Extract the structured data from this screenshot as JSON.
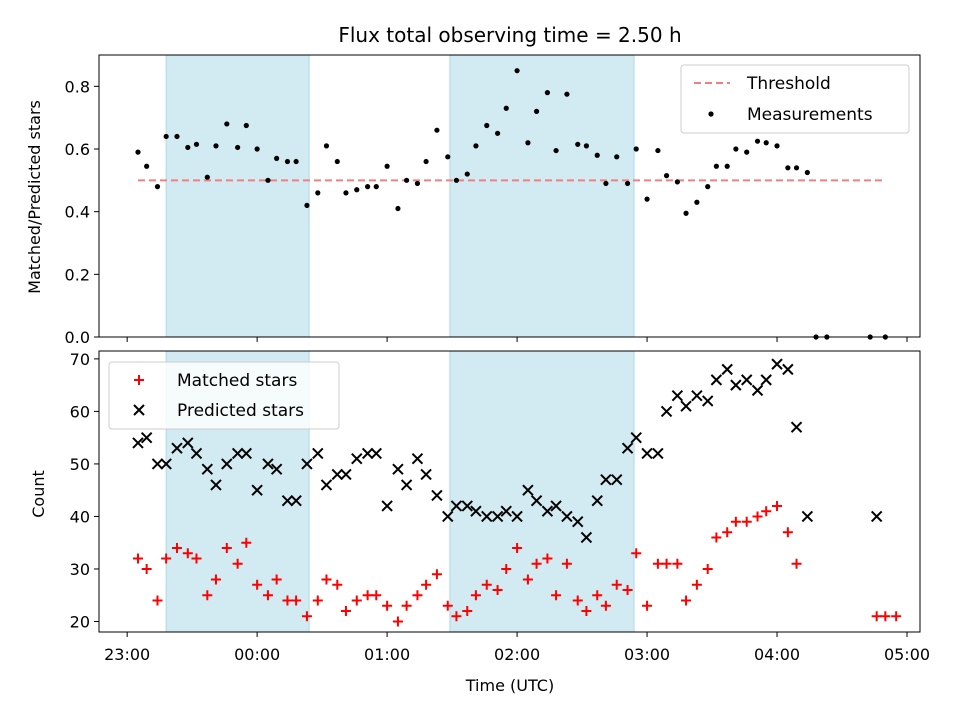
{
  "chart_data": {
    "title": "Flux total observing time = 2.50 h",
    "xlabel": "Time (UTC)",
    "x_ticks": [
      "23:00",
      "00:00",
      "01:00",
      "02:00",
      "03:00",
      "04:00",
      "05:00"
    ],
    "x_range": [
      "22:47",
      "05:06"
    ],
    "shaded_intervals": [
      [
        "23:18",
        "00:24"
      ],
      [
        "01:29",
        "02:54"
      ]
    ],
    "shade_color": "#add8e6",
    "time": [
      "23:05",
      "23:09",
      "23:14",
      "23:18",
      "23:23",
      "23:28",
      "23:32",
      "23:37",
      "23:41",
      "23:46",
      "23:51",
      "23:55",
      "00:00",
      "00:05",
      "00:09",
      "00:14",
      "00:18",
      "00:23",
      "00:28",
      "00:32",
      "00:37",
      "00:41",
      "00:46",
      "00:51",
      "00:55",
      "01:00",
      "01:05",
      "01:09",
      "01:14",
      "01:18",
      "01:23",
      "01:28",
      "01:32",
      "01:37",
      "01:41",
      "01:46",
      "01:51",
      "01:55",
      "02:00",
      "02:05",
      "02:09",
      "02:14",
      "02:18",
      "02:23",
      "02:28",
      "02:32",
      "02:37",
      "02:41",
      "02:46",
      "02:51",
      "02:55",
      "03:00",
      "03:05",
      "03:09",
      "03:14",
      "03:18",
      "03:23",
      "03:28",
      "03:32",
      "03:37",
      "03:41",
      "03:46",
      "03:51",
      "03:55",
      "04:00",
      "04:05",
      "04:09",
      "04:14",
      "04:18",
      "04:23",
      "04:28",
      "04:32",
      "04:37",
      "04:41",
      "04:46"
    ],
    "panels": [
      {
        "type": "scatter",
        "ylabel": "Matched/Predicted stars",
        "ylim": [
          0,
          0.9
        ],
        "y_ticks": [
          0.0,
          0.2,
          0.4,
          0.6,
          0.8
        ],
        "threshold": {
          "name": "Threshold",
          "value": 0.5,
          "x_start": "23:05",
          "x_end": "04:50",
          "color": "#f08080"
        },
        "series": [
          {
            "name": "Measurements",
            "color": "#000000",
            "marker": "dot",
            "values": [
              0.59,
              0.545,
              0.48,
              0.64,
              0.64,
              0.605,
              0.615,
              0.51,
              0.61,
              0.68,
              0.605,
              0.675,
              0.6,
              0.5,
              0.57,
              0.56,
              0.56,
              0.42,
              0.46,
              0.61,
              0.56,
              0.46,
              0.47,
              0.48,
              0.48,
              0.545,
              0.41,
              0.5,
              0.49,
              0.56,
              0.66,
              0.575,
              0.5,
              0.52,
              0.61,
              0.675,
              0.65,
              0.73,
              0.85,
              0.62,
              0.72,
              0.78,
              0.595,
              0.775,
              0.615,
              0.61,
              0.58,
              0.49,
              0.575,
              0.49,
              0.6,
              0.44,
              0.595,
              0.515,
              0.495,
              0.395,
              0.43,
              0.48,
              0.545,
              0.545,
              0.6,
              0.59,
              0.625,
              0.62,
              0.61,
              0.54,
              0.54,
              0.525,
              0.0,
              0.0
            ]
          }
        ],
        "zero_points_time": [
          "04:43",
          "04:50"
        ],
        "legend_position": "upper-right"
      },
      {
        "type": "scatter",
        "ylabel": "Count",
        "ylim": [
          18,
          71.5
        ],
        "y_ticks": [
          20,
          30,
          40,
          50,
          60,
          70
        ],
        "series": [
          {
            "name": "Matched stars",
            "color": "#ff0000",
            "marker": "plus",
            "values": [
              32,
              30,
              24,
              32,
              34,
              33,
              32,
              25,
              28,
              34,
              31,
              35,
              27,
              25,
              28,
              24,
              24,
              21,
              24,
              28,
              27,
              22,
              24,
              25,
              25,
              23,
              20,
              23,
              25,
              27,
              29,
              23,
              21,
              22,
              25,
              27,
              26,
              30,
              34,
              28,
              31,
              32,
              25,
              31,
              24,
              22,
              25,
              23,
              27,
              26,
              33,
              23,
              31,
              31,
              31,
              24,
              27,
              30,
              36,
              37,
              39,
              39,
              40,
              41,
              42,
              37,
              31
            ]
          },
          {
            "name": "Predicted stars",
            "color": "#000000",
            "marker": "x",
            "values": [
              54,
              55,
              50,
              50,
              53,
              54,
              52,
              49,
              46,
              50,
              52,
              52,
              45,
              50,
              49,
              43,
              43,
              50,
              52,
              46,
              48,
              48,
              51,
              52,
              52,
              42,
              49,
              46,
              51,
              48,
              44,
              40,
              42,
              42,
              41,
              40,
              40,
              41,
              40,
              45,
              43,
              41,
              42,
              40,
              39,
              36,
              43,
              47,
              47,
              53,
              55,
              52,
              52,
              60,
              63,
              61,
              63,
              62,
              66,
              68,
              65,
              66,
              64,
              66,
              69,
              68,
              57,
              40
            ]
          }
        ],
        "extra_points": {
          "matched_tail": [
            [
              "04:46",
              "21"
            ],
            [
              "04:50",
              "21"
            ],
            [
              "04:55",
              "21"
            ]
          ],
          "predicted_tail": [
            "04:46",
            40
          ]
        },
        "legend_position": "upper-left"
      }
    ]
  }
}
